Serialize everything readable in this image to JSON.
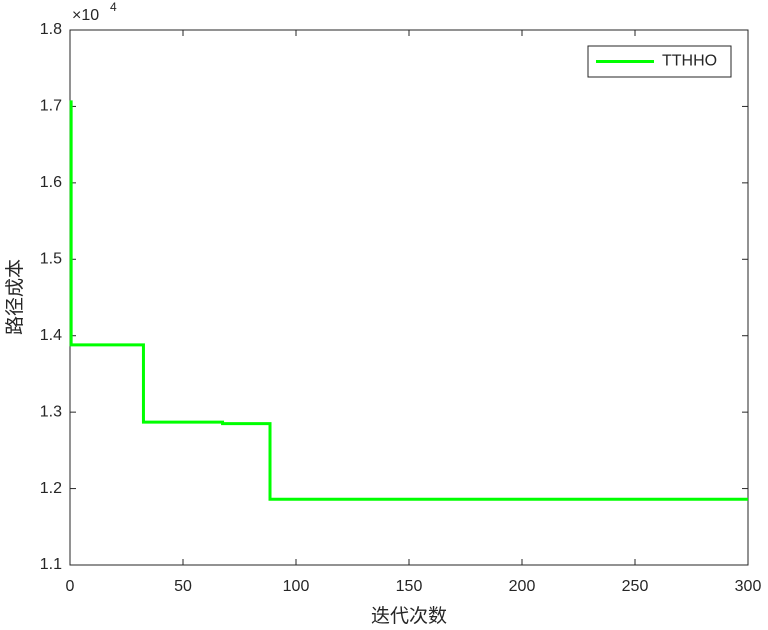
{
  "chart_data": {
    "type": "line",
    "x_label": "迭代次数",
    "y_label": "路径成本",
    "y_multiplier": {
      "base": "×10",
      "exponent": "4"
    },
    "x": [
      0.5,
      0.5,
      32.5,
      32.5,
      67.5,
      67.5,
      88.5,
      88.5,
      300
    ],
    "series": [
      {
        "name": "TTHHO",
        "color": "#00ff00",
        "values": [
          1.708,
          1.388,
          1.388,
          1.287,
          1.287,
          1.285,
          1.285,
          1.186,
          1.186
        ]
      }
    ],
    "xlim": [
      0,
      300
    ],
    "xticks": [
      0,
      50,
      100,
      150,
      200,
      250,
      300
    ],
    "ylim": [
      1.1,
      1.8
    ],
    "yticks": [
      1.1,
      1.2,
      1.3,
      1.4,
      1.5,
      1.6,
      1.7,
      1.8
    ],
    "grid": false,
    "legend": "top-right"
  }
}
